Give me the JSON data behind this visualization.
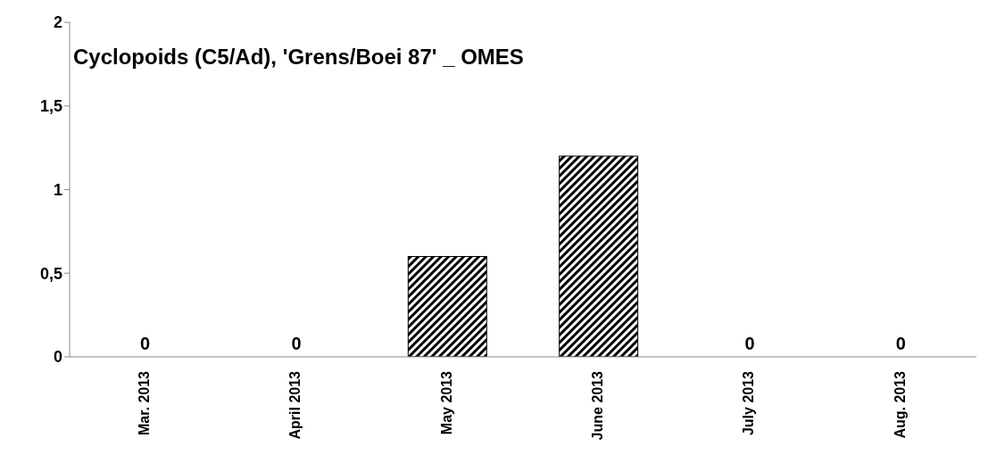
{
  "chart_data": {
    "type": "bar",
    "title": "Cyclopoids (C5/Ad), 'Grens/Boei 87' _ OMES",
    "categories": [
      "Mar. 2013",
      "April 2013",
      "May 2013",
      "June 2013",
      "July 2013",
      "Aug. 2013"
    ],
    "values": [
      0,
      0,
      0.6,
      1.2,
      0,
      0
    ],
    "value_labels": [
      "0",
      "0",
      null,
      null,
      "0",
      "0"
    ],
    "color": "#000000",
    "ylim": [
      0,
      2
    ],
    "yticks": [
      0,
      {
        "value": 0.5,
        "label": "0,5"
      },
      1,
      {
        "value": 1.5,
        "label": "1,5"
      },
      2
    ],
    "grid": false,
    "legend": false
  }
}
